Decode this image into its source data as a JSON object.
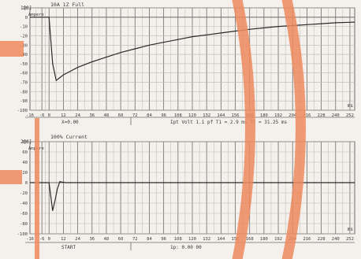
{
  "colors": {
    "paper": "#f4f1ec",
    "grid": "#6b6b6b",
    "grid_fine": "#b9b6b0",
    "trace": "#2a2a2a",
    "overlay": "#ee8a5e"
  },
  "chart_data": [
    {
      "type": "line",
      "header": "1[0]",
      "title": "10A 1Z Full",
      "ylabel": "Ampere",
      "y_ticks": [
        "10",
        "0",
        "-10",
        "-20",
        "-30",
        "-40",
        "-50",
        "-60",
        "-70",
        "-80",
        "-90",
        "-100"
      ],
      "x_ticks": [
        "-16",
        "-6",
        "0",
        "12",
        "24",
        "36",
        "48",
        "60",
        "72",
        "84",
        "96",
        "108",
        "120",
        "132",
        "144",
        "156",
        "168",
        "180",
        "192",
        "204",
        "216",
        "228",
        "240",
        "252"
      ],
      "x_unit": "ms",
      "ylim": [
        -100,
        10
      ],
      "xlim": [
        -16,
        256
      ],
      "series": [
        {
          "x": [
            -16,
            -6,
            0,
            3,
            6,
            9,
            12,
            18,
            24,
            36,
            48,
            60,
            72,
            84,
            96,
            108,
            120,
            132,
            144,
            156,
            168,
            180,
            192,
            204,
            216,
            228,
            240,
            252,
            256
          ],
          "values": [
            0,
            0,
            0,
            -50,
            -68,
            -65,
            -62,
            -58,
            -54,
            -48,
            -43,
            -38,
            -34,
            -30,
            -27,
            -24,
            -21,
            -19,
            -17,
            -15,
            -13,
            -11.5,
            -10,
            -9,
            -8,
            -7,
            -6,
            -5.5,
            -5.3
          ]
        }
      ],
      "footer_left": "X=0.00",
      "footer_right": "Ipt Volt 1.1 pf  T1 = 2.9 ms  T2 = 31.25 ms"
    },
    {
      "type": "line",
      "header": "2[0]",
      "title": "100% Current",
      "ylabel": "Ampere",
      "y_ticks": [
        "80",
        "60",
        "40",
        "20",
        "0",
        "-20",
        "-40",
        "-60",
        "-80",
        "-100"
      ],
      "x_ticks": [
        "-16",
        "-6",
        "0",
        "12",
        "24",
        "36",
        "48",
        "60",
        "72",
        "84",
        "96",
        "108",
        "120",
        "132",
        "144",
        "156",
        "168",
        "180",
        "192",
        "204",
        "216",
        "228",
        "240",
        "252"
      ],
      "x_unit": "ms",
      "ylim": [
        -100,
        80
      ],
      "xlim": [
        -16,
        256
      ],
      "series": [
        {
          "x": [
            -16,
            -6,
            0,
            3,
            5,
            7,
            9,
            11,
            14,
            256
          ],
          "values": [
            0,
            0,
            0,
            -55,
            -35,
            -12,
            2,
            1,
            0,
            0
          ]
        }
      ],
      "footer_left": "START",
      "footer_right": "1p: 0.00 00"
    }
  ]
}
